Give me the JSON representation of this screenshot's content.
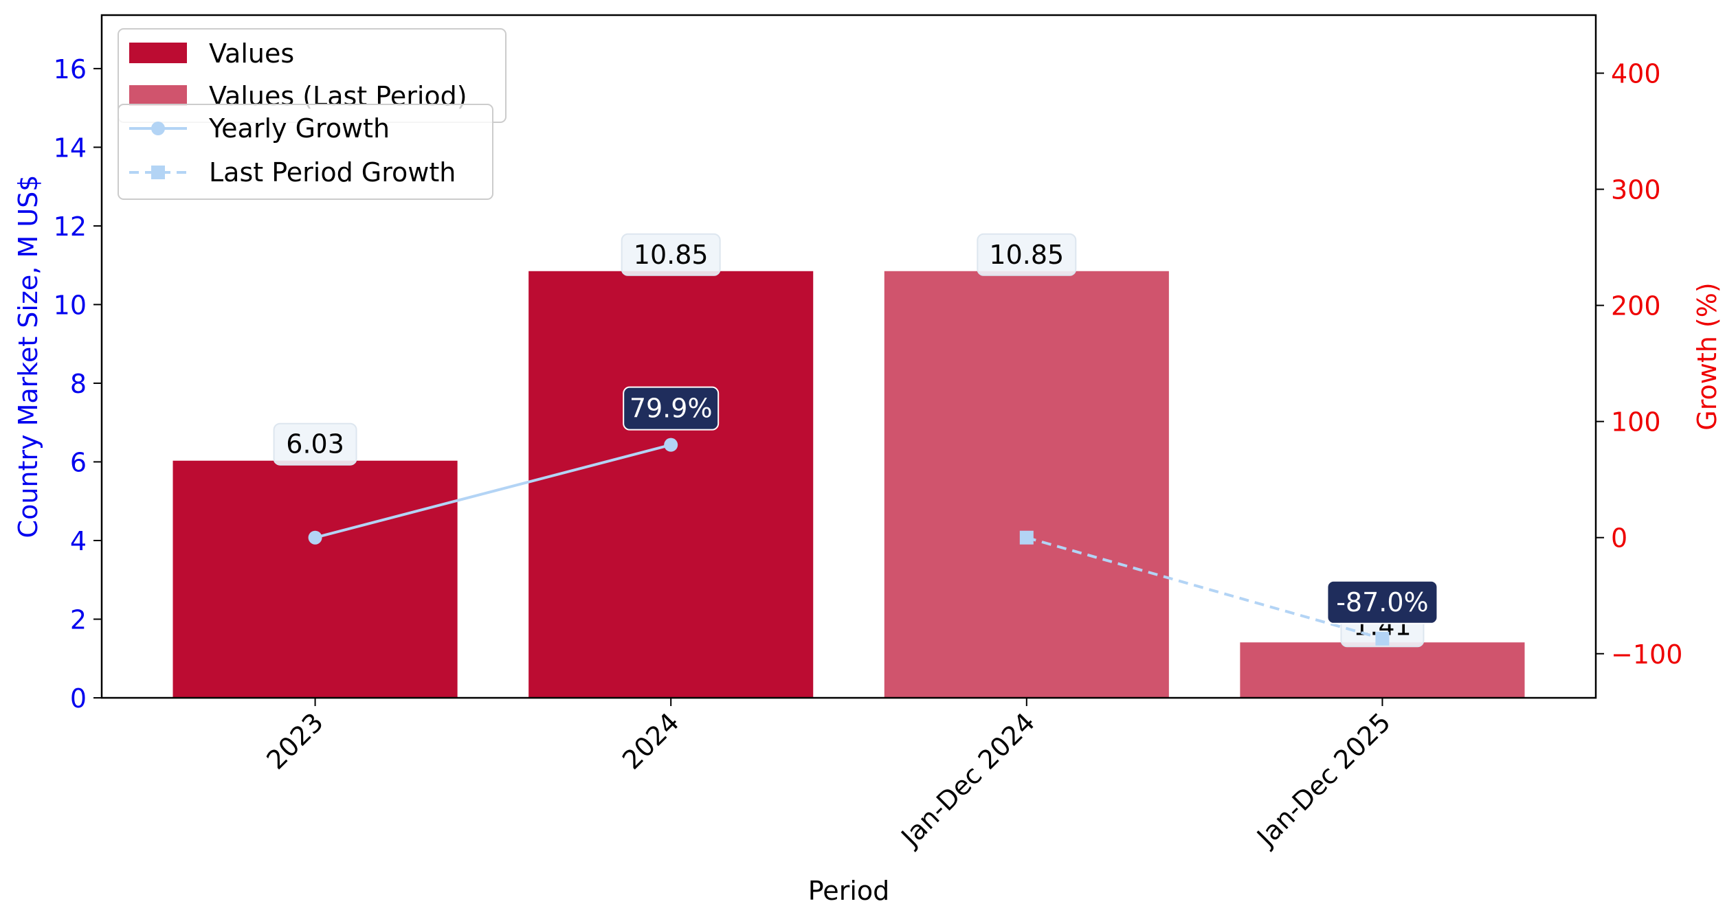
{
  "chart_data": {
    "type": "bar",
    "categories": [
      "2023",
      "2024",
      "Jan-Dec 2024",
      "Jan-Dec 2025"
    ],
    "bar_values": [
      6.03,
      10.85,
      10.85,
      1.41
    ],
    "bar_labels": [
      "6.03",
      "10.85",
      "10.85",
      "1.41"
    ],
    "bar_series_index": [
      0,
      0,
      1,
      1
    ],
    "series": [
      {
        "name": "Values",
        "color": "#bc0c32",
        "kind": "bar"
      },
      {
        "name": "Values (Last Period)",
        "color": "#d0546d",
        "kind": "bar"
      },
      {
        "name": "Yearly Growth",
        "color": "#b3d4f5",
        "kind": "line",
        "marker": "circle",
        "points": [
          {
            "category": "2023",
            "value": 0
          },
          {
            "category": "2024",
            "value": 79.9
          }
        ]
      },
      {
        "name": "Last Period Growth",
        "color": "#b3d4f5",
        "kind": "line",
        "marker": "square",
        "dashed": true,
        "points": [
          {
            "category": "Jan-Dec 2024",
            "value": 0
          },
          {
            "category": "Jan-Dec 2025",
            "value": -87.0
          }
        ]
      }
    ],
    "growth_labels": [
      {
        "category": "2024",
        "value": 79.9,
        "text": "79.9%"
      },
      {
        "category": "Jan-Dec 2025",
        "value": -87.0,
        "text": "-87.0%"
      }
    ],
    "xlabel": "Period",
    "ylabel_left": "Country Market Size, M US$",
    "ylabel_right": "Growth (%)",
    "ylim_left": [
      0,
      17.36
    ],
    "yticks_left": [
      0,
      2,
      4,
      6,
      8,
      10,
      12,
      14,
      16
    ],
    "ylim_right": [
      -138,
      450
    ],
    "yticks_right": [
      -100,
      0,
      100,
      200,
      300,
      400
    ],
    "left_axis_color": "#0000ee",
    "right_axis_color": "#ee0000",
    "label_box_color": "#eef4fa",
    "growth_label_box_color": "#1f2d5c",
    "grid": false,
    "legend_position": "top-left"
  }
}
